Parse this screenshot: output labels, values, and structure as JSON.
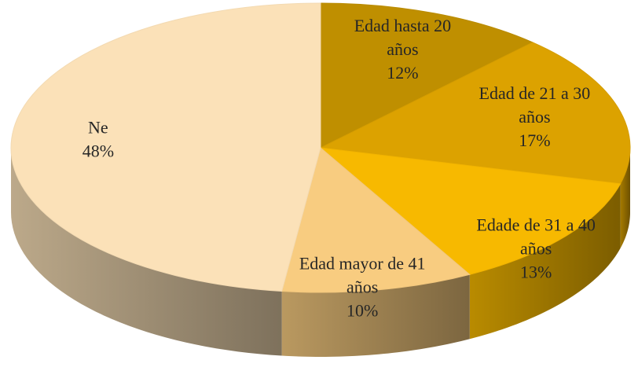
{
  "chart_data": {
    "type": "pie",
    "categories": [
      "Edad hasta 20 años",
      "Edad de 21 a 30 años",
      "Edade de 31 a 40 años",
      "Edad mayor de 41 años",
      "Ne"
    ],
    "values": [
      12,
      17,
      13,
      10,
      48
    ],
    "value_labels": [
      "12%",
      "17%",
      "13%",
      "10%",
      "48%"
    ],
    "colors": [
      "#bf8f00",
      "#dca200",
      "#f7b900",
      "#f8cc80",
      "#fbe1b8"
    ]
  }
}
